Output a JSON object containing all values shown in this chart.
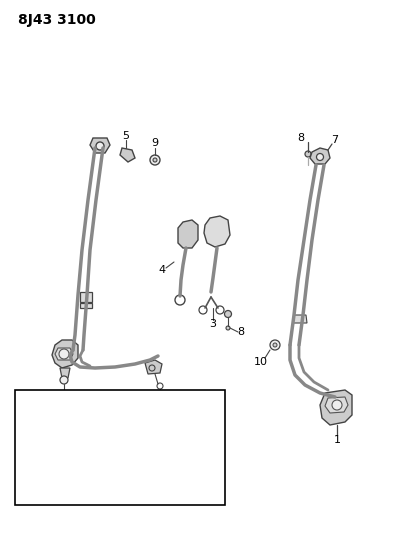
{
  "title": "8J43 3100",
  "bg_color": "#ffffff",
  "line_color": "#444444",
  "label_color": "#000000",
  "title_fontsize": 10,
  "label_fontsize": 8
}
